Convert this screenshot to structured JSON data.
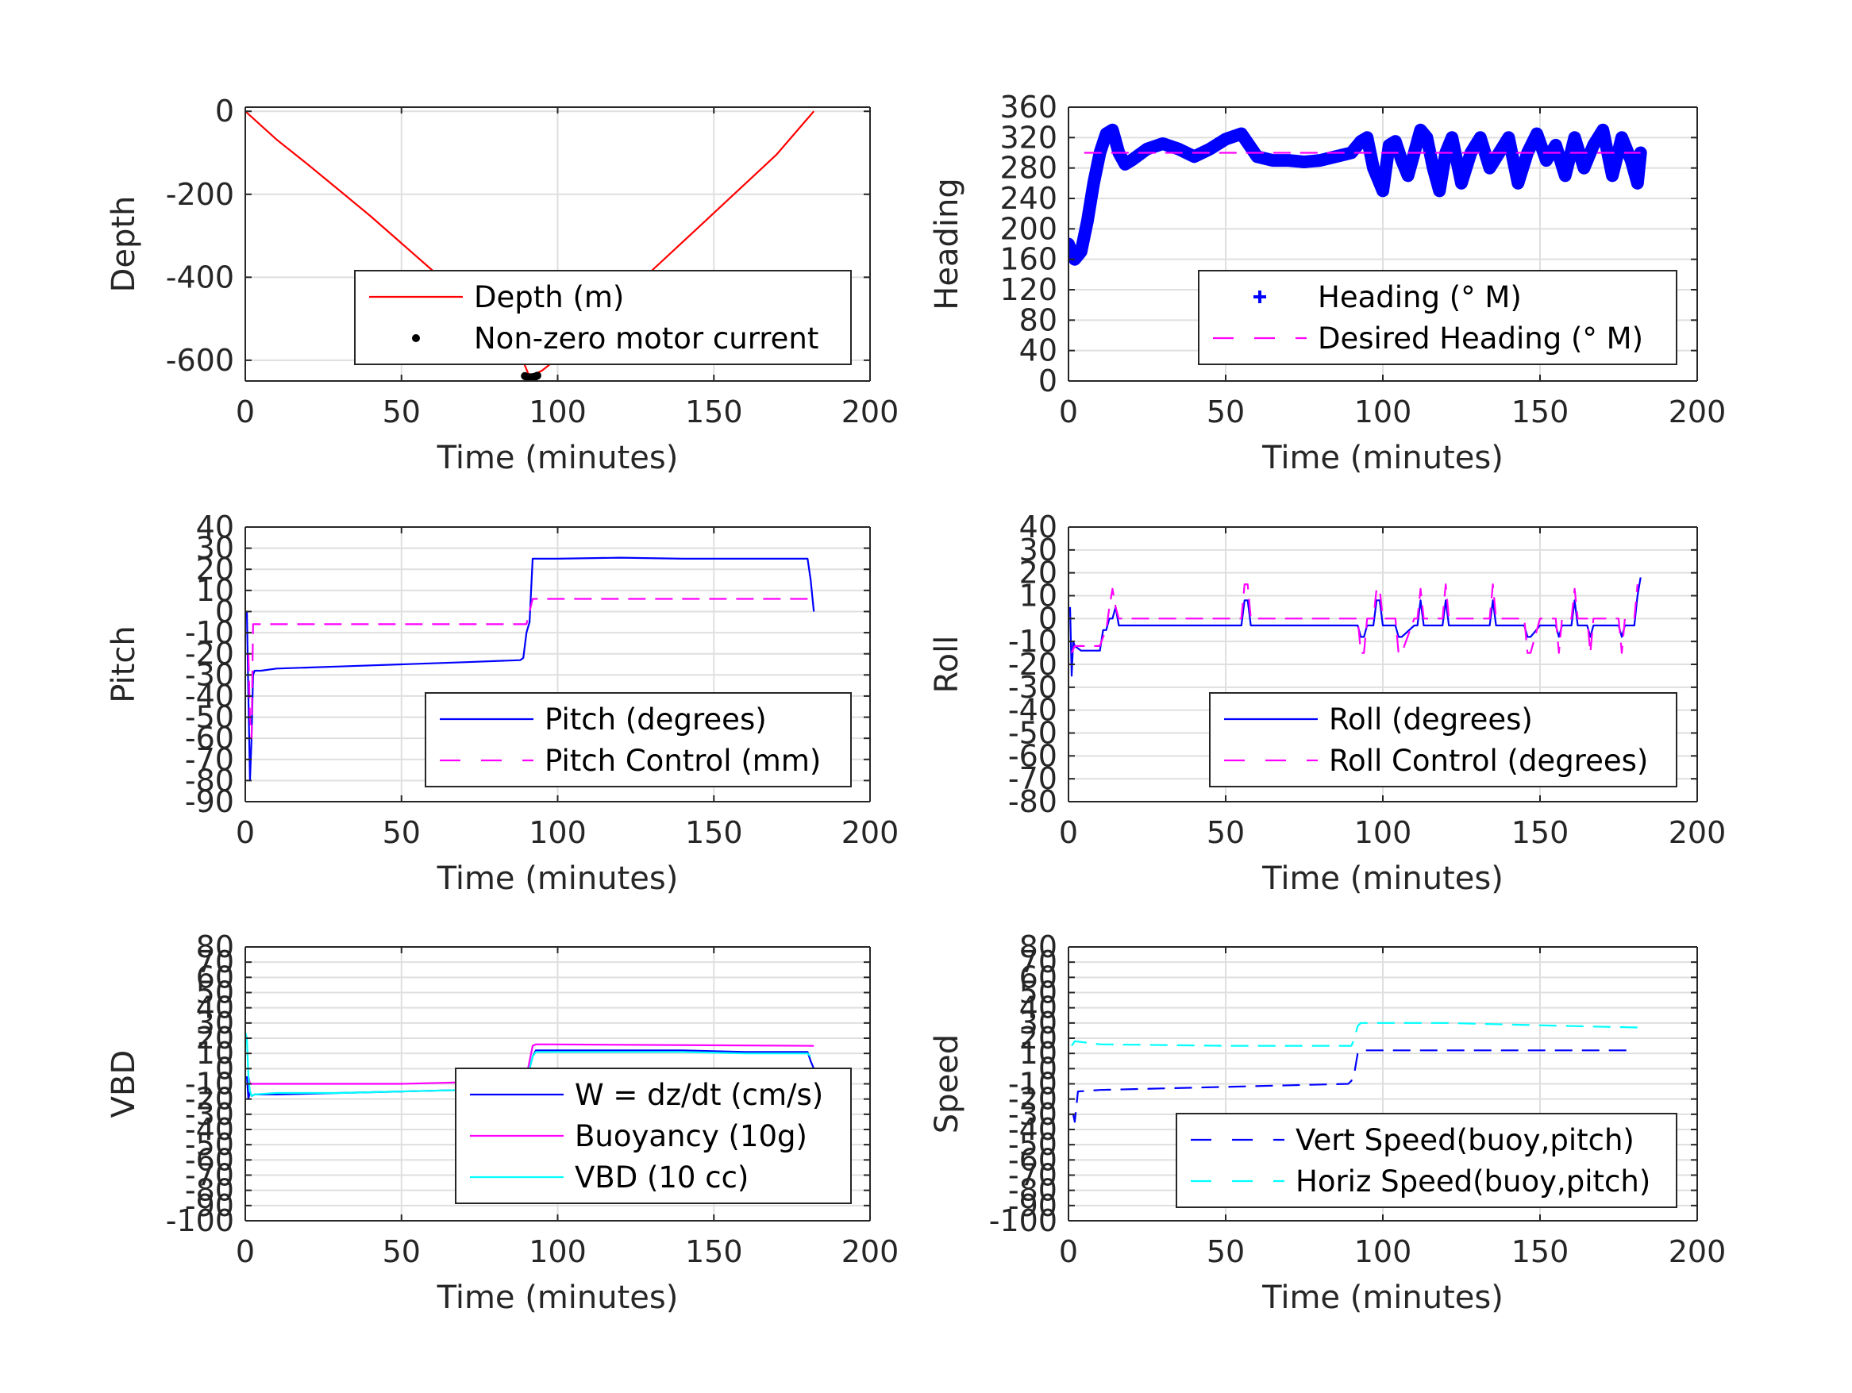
{
  "figure": {
    "background": "#ffffff"
  },
  "chart_data": [
    {
      "id": "depth",
      "type": "line",
      "ylabel": "Depth",
      "xlabel": "Time (minutes)",
      "xlim": [
        0,
        200
      ],
      "ylim": [
        -650,
        10
      ],
      "xticks": [
        0,
        50,
        100,
        150,
        200
      ],
      "xtick_labels": [
        "0",
        "50",
        "100",
        "150",
        "200"
      ],
      "yticks": [
        0,
        -200,
        -400,
        -600
      ],
      "ytick_labels": [
        "0",
        "-200",
        "-400",
        "-600"
      ],
      "grid": true,
      "legend_position": "bottom-right",
      "legend_labels": [
        "Depth (m)",
        "Non-zero motor current"
      ],
      "series": [
        {
          "name": "Depth (m)",
          "style": "line",
          "color": "#ff0000",
          "x": [
            0,
            10,
            20,
            30,
            40,
            50,
            60,
            70,
            80,
            88,
            91,
            95,
            100,
            110,
            120,
            130,
            140,
            150,
            160,
            170,
            182
          ],
          "y": [
            0,
            -68,
            -128,
            -190,
            -252,
            -318,
            -384,
            -452,
            -515,
            -585,
            -640,
            -625,
            -595,
            -525,
            -455,
            -385,
            -315,
            -245,
            -175,
            -105,
            0
          ]
        },
        {
          "name": "Non-zero motor current",
          "style": "dots",
          "color": "#000000",
          "x": [
            89.5,
            90.0,
            90.5,
            91.0,
            91.5,
            92.0,
            92.5,
            93.0,
            93.5
          ],
          "y": [
            -638,
            -640,
            -641,
            -641,
            -641,
            -641,
            -640,
            -639,
            -637
          ]
        }
      ]
    },
    {
      "id": "heading",
      "type": "scatter",
      "ylabel": "Heading",
      "xlabel": "Time (minutes)",
      "xlim": [
        0,
        200
      ],
      "ylim": [
        0,
        360
      ],
      "xticks": [
        0,
        50,
        100,
        150,
        200
      ],
      "xtick_labels": [
        "0",
        "50",
        "100",
        "150",
        "200"
      ],
      "yticks": [
        0,
        40,
        80,
        120,
        160,
        200,
        240,
        280,
        320,
        360
      ],
      "ytick_labels": [
        "0",
        "40",
        "80",
        "120",
        "160",
        "200",
        "240",
        "280",
        "320",
        "360"
      ],
      "grid": true,
      "legend_position": "bottom-right",
      "legend_labels": [
        "Heading (° M)",
        "Desired Heading (° M)"
      ],
      "series": [
        {
          "name": "Heading (° M)",
          "style": "plus",
          "color": "#0000ff",
          "x": [
            0,
            2,
            4,
            6,
            8,
            10,
            12,
            14,
            16,
            18,
            20,
            25,
            30,
            35,
            40,
            45,
            50,
            55,
            60,
            65,
            70,
            75,
            80,
            85,
            90,
            93,
            95,
            97,
            100,
            102,
            104,
            106,
            108,
            110,
            112,
            114,
            116,
            118,
            120,
            122,
            125,
            128,
            131,
            134,
            137,
            140,
            143,
            146,
            149,
            152,
            155,
            158,
            161,
            164,
            167,
            170,
            173,
            176,
            179,
            181,
            182
          ],
          "y": [
            180,
            160,
            170,
            210,
            260,
            300,
            325,
            330,
            300,
            285,
            290,
            305,
            312,
            305,
            295,
            305,
            318,
            325,
            295,
            290,
            290,
            288,
            290,
            295,
            300,
            315,
            320,
            280,
            250,
            310,
            315,
            290,
            270,
            300,
            330,
            320,
            280,
            250,
            300,
            320,
            260,
            300,
            320,
            280,
            300,
            320,
            260,
            300,
            325,
            290,
            310,
            270,
            320,
            280,
            310,
            330,
            270,
            320,
            290,
            260,
            300
          ]
        },
        {
          "name": "Desired Heading (° M)",
          "style": "dashed",
          "color": "#ff00ff",
          "x": [
            5,
            182
          ],
          "y": [
            300,
            300
          ]
        }
      ]
    },
    {
      "id": "pitch",
      "type": "line",
      "ylabel": "Pitch",
      "xlabel": "Time (minutes)",
      "xlim": [
        0,
        200
      ],
      "ylim": [
        -90,
        40
      ],
      "xticks": [
        0,
        50,
        100,
        150,
        200
      ],
      "xtick_labels": [
        "0",
        "50",
        "100",
        "150",
        "200"
      ],
      "yticks": [
        -90,
        -80,
        -70,
        -60,
        -50,
        -40,
        -30,
        -20,
        -10,
        0,
        10,
        20,
        30,
        40
      ],
      "ytick_labels": [
        "-90",
        "-80",
        "-70",
        "-60",
        "-50",
        "-40",
        "-30",
        "-20",
        "-10",
        "0",
        "10",
        "20",
        "30",
        "40"
      ],
      "grid": true,
      "legend_position": "bottom-right",
      "legend_labels": [
        "Pitch (degrees)",
        "Pitch Control (mm)"
      ],
      "series": [
        {
          "name": "Pitch (degrees)",
          "style": "line",
          "color": "#0000ff",
          "x": [
            0.5,
            1,
            1.5,
            2,
            2.5,
            3,
            5,
            10,
            30,
            50,
            70,
            88,
            89,
            90,
            91,
            92,
            93,
            100,
            120,
            140,
            160,
            180,
            181,
            182
          ],
          "y": [
            0,
            -40,
            -80,
            -60,
            -30,
            -28,
            -28,
            -27,
            -26,
            -25,
            -24,
            -23,
            -22,
            -10,
            -5,
            25,
            25,
            25,
            25.5,
            25,
            25,
            25,
            15,
            0
          ]
        },
        {
          "name": "Pitch Control (mm)",
          "style": "dashed",
          "color": "#ff00ff",
          "x": [
            1,
            1.5,
            2,
            2.5,
            4,
            50,
            90,
            91,
            92,
            93,
            150,
            181
          ],
          "y": [
            -20,
            -50,
            -60,
            -6,
            -6,
            -6,
            -6,
            0,
            6,
            6,
            6,
            6
          ]
        }
      ]
    },
    {
      "id": "roll",
      "type": "line",
      "ylabel": "Roll",
      "xlabel": "Time (minutes)",
      "xlim": [
        0,
        200
      ],
      "ylim": [
        -80,
        40
      ],
      "xticks": [
        0,
        50,
        100,
        150,
        200
      ],
      "xtick_labels": [
        "0",
        "50",
        "100",
        "150",
        "200"
      ],
      "yticks": [
        -80,
        -70,
        -60,
        -50,
        -40,
        -30,
        -20,
        -10,
        0,
        10,
        20,
        30,
        40
      ],
      "ytick_labels": [
        "-80",
        "-70",
        "-60",
        "-50",
        "-40",
        "-30",
        "-20",
        "-10",
        "0",
        "10",
        "20",
        "30",
        "40"
      ],
      "grid": true,
      "legend_position": "bottom-right",
      "legend_labels": [
        "Roll (degrees)",
        "Roll Control (degrees)"
      ],
      "series": [
        {
          "name": "Roll (degrees)",
          "style": "line",
          "color": "#0000ff",
          "x": [
            0.5,
            1,
            1.5,
            2,
            4,
            8,
            10,
            11,
            12,
            13,
            14,
            15,
            16,
            20,
            40,
            55,
            56,
            57,
            58,
            60,
            80,
            92,
            93,
            94,
            95,
            96,
            97,
            98,
            99,
            100,
            104,
            105,
            106,
            110,
            111,
            112,
            113,
            118,
            119,
            120,
            121,
            125,
            130,
            134,
            135,
            136,
            140,
            145,
            146,
            147,
            150,
            155,
            156,
            157,
            160,
            161,
            162,
            165,
            166,
            167,
            170,
            175,
            176,
            177,
            180,
            181,
            182
          ],
          "y": [
            5,
            -25,
            -10,
            -12,
            -14,
            -14,
            -14,
            -5,
            -5,
            0,
            0,
            5,
            -3,
            -3,
            -3,
            -3,
            8,
            8,
            -3,
            -3,
            -3,
            -3,
            -8,
            -8,
            -3,
            -3,
            -3,
            8,
            8,
            -3,
            -3,
            -8,
            -8,
            -3,
            -3,
            8,
            -3,
            -3,
            -3,
            8,
            -3,
            -3,
            -3,
            -3,
            8,
            -3,
            -3,
            -3,
            -8,
            -8,
            -3,
            -3,
            -8,
            -3,
            -3,
            8,
            -3,
            -3,
            -8,
            -3,
            -3,
            -3,
            -8,
            -3,
            -3,
            10,
            18
          ]
        },
        {
          "name": "Roll Control (degrees)",
          "style": "dashed",
          "color": "#ff00ff",
          "x": [
            1,
            2,
            10,
            11,
            12,
            13,
            14,
            15,
            16,
            20,
            55,
            56,
            57,
            58,
            60,
            92,
            93,
            94,
            95,
            96,
            97,
            98,
            99,
            100,
            104,
            105,
            106,
            110,
            111,
            112,
            113,
            118,
            119,
            120,
            121,
            125,
            134,
            135,
            136,
            145,
            146,
            147,
            150,
            155,
            156,
            157,
            160,
            161,
            162,
            165,
            166,
            167,
            175,
            176,
            177,
            180,
            181
          ],
          "y": [
            -15,
            -12,
            -12,
            -8,
            -5,
            5,
            13,
            5,
            0,
            0,
            0,
            15,
            15,
            0,
            0,
            0,
            -15,
            -15,
            0,
            0,
            0,
            13,
            13,
            0,
            0,
            -15,
            -15,
            0,
            0,
            13,
            0,
            0,
            0,
            15,
            0,
            0,
            0,
            15,
            0,
            0,
            -15,
            -15,
            0,
            0,
            -15,
            0,
            0,
            13,
            0,
            0,
            -15,
            0,
            0,
            -15,
            0,
            0,
            15
          ]
        }
      ]
    },
    {
      "id": "vbd",
      "type": "line",
      "ylabel": "VBD",
      "xlabel": "Time (minutes)",
      "xlim": [
        0,
        200
      ],
      "ylim": [
        -100,
        80
      ],
      "xticks": [
        0,
        50,
        100,
        150,
        200
      ],
      "xtick_labels": [
        "0",
        "50",
        "100",
        "150",
        "200"
      ],
      "yticks": [
        -100,
        -90,
        -80,
        -70,
        -60,
        -50,
        -40,
        -30,
        -20,
        -10,
        0,
        10,
        20,
        30,
        40,
        50,
        60,
        70,
        80
      ],
      "ytick_labels": [
        "-100",
        "-90",
        "-80",
        "-70",
        "-60",
        "-50",
        "-40",
        "-30",
        "-20",
        "-10",
        "0",
        "10",
        "20",
        "30",
        "40",
        "50",
        "60",
        "70",
        "80"
      ],
      "grid": true,
      "legend_position": "bottom-right",
      "legend_labels": [
        "W = dz/dt (cm/s)",
        "Buoyancy (10g)",
        "VBD (10 cc)"
      ],
      "series": [
        {
          "name": "W = dz/dt (cm/s)",
          "style": "line",
          "color": "#0000ff",
          "x": [
            0.5,
            1,
            1.5,
            2,
            3,
            10,
            30,
            50,
            70,
            89,
            90,
            91,
            92,
            93,
            100,
            120,
            140,
            160,
            180,
            181,
            182
          ],
          "y": [
            -5,
            -20,
            -15,
            -18,
            -17,
            -17,
            -16,
            -15,
            -14,
            -12,
            -10,
            0,
            8,
            12,
            12,
            12,
            12,
            11,
            11,
            5,
            0
          ]
        },
        {
          "name": "Buoyancy (10g)",
          "style": "line",
          "color": "#ff00ff",
          "x": [
            1,
            1.5,
            2,
            3,
            10,
            50,
            89,
            90,
            91,
            92,
            93,
            182
          ],
          "y": [
            -5,
            -10,
            -10,
            -10,
            -10,
            -10,
            -8,
            -5,
            5,
            15,
            16,
            15
          ]
        },
        {
          "name": "VBD (10 cc)",
          "style": "line",
          "color": "#00ffff",
          "x": [
            0,
            0.5,
            1,
            1.5,
            2,
            3,
            10,
            30,
            50,
            70,
            89,
            90,
            91,
            92,
            93,
            100,
            120,
            140,
            160,
            180,
            181
          ],
          "y": [
            24,
            20,
            -5,
            -15,
            -18,
            -17,
            -16,
            -16,
            -15,
            -14,
            -13,
            -10,
            0,
            8,
            11,
            11,
            11,
            11,
            10,
            10,
            8
          ]
        }
      ]
    },
    {
      "id": "speed",
      "type": "line",
      "ylabel": "Speed",
      "xlabel": "Time (minutes)",
      "xlim": [
        0,
        200
      ],
      "ylim": [
        -100,
        80
      ],
      "xticks": [
        0,
        50,
        100,
        150,
        200
      ],
      "xtick_labels": [
        "0",
        "50",
        "100",
        "150",
        "200"
      ],
      "yticks": [
        -100,
        -90,
        -80,
        -70,
        -60,
        -50,
        -40,
        -30,
        -20,
        -10,
        0,
        10,
        20,
        30,
        40,
        50,
        60,
        70,
        80
      ],
      "ytick_labels": [
        "-100",
        "-90",
        "-80",
        "-70",
        "-60",
        "-50",
        "-40",
        "-30",
        "-20",
        "-10",
        "0",
        "10",
        "20",
        "30",
        "40",
        "50",
        "60",
        "70",
        "80"
      ],
      "grid": true,
      "legend_position": "bottom-right",
      "legend_labels": [
        "Vert Speed(buoy,pitch)",
        "Horiz Speed(buoy,pitch)"
      ],
      "series": [
        {
          "name": "Vert Speed(buoy,pitch)",
          "style": "dashed",
          "color": "#0000ff",
          "x": [
            1.5,
            2,
            3,
            10,
            50,
            89,
            90,
            91,
            92,
            93,
            120,
            180
          ],
          "y": [
            -30,
            -35,
            -15,
            -14,
            -12,
            -10,
            -8,
            -2,
            10,
            12,
            12,
            12
          ]
        },
        {
          "name": "Horiz Speed(buoy,pitch)",
          "style": "dashed",
          "color": "#00ffff",
          "x": [
            1,
            2,
            10,
            50,
            89,
            90,
            91,
            92,
            93,
            120,
            160,
            182
          ],
          "y": [
            15,
            18,
            16,
            15,
            15,
            15,
            20,
            28,
            30,
            30,
            28,
            27
          ]
        }
      ]
    }
  ]
}
